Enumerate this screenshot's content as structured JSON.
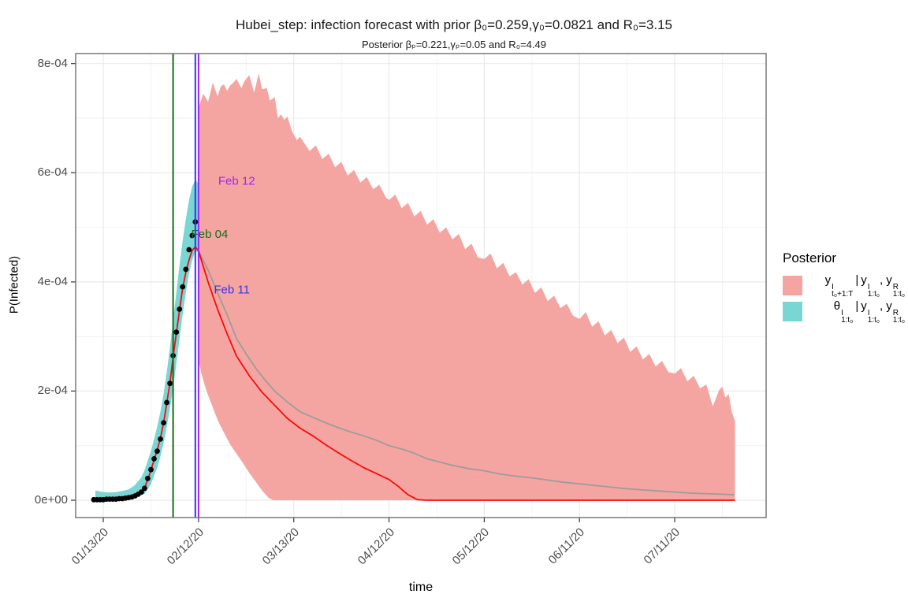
{
  "chart_data": {
    "type": "area",
    "title": "Hubei_step: infection forecast with prior β₀=0.259,γ₀=0.0821 and R₀=3.15",
    "subtitle": "Posterior βₚ=0.221,γₚ=0.05 and R₀=4.49",
    "xlabel": "time",
    "ylabel": "P(Infected)",
    "xlim_days": [
      -8.7,
      208.8
    ],
    "ylim_e4": [
      -0.317,
      8.183
    ],
    "x_ticks": [
      {
        "day": 0,
        "label": "01/13/20"
      },
      {
        "day": 30,
        "label": "02/12/20"
      },
      {
        "day": 60,
        "label": "03/13/20"
      },
      {
        "day": 90,
        "label": "04/12/20"
      },
      {
        "day": 120,
        "label": "05/12/20"
      },
      {
        "day": 150,
        "label": "06/11/20"
      },
      {
        "day": 180,
        "label": "07/11/20"
      }
    ],
    "minor_x_days": [
      15,
      45,
      75,
      105,
      135,
      165,
      195
    ],
    "y_ticks": [
      {
        "v": 0,
        "label": "0e+00"
      },
      {
        "v": 2,
        "label": "2e-04"
      },
      {
        "v": 4,
        "label": "4e-04"
      },
      {
        "v": 6,
        "label": "6e-04"
      },
      {
        "v": 8,
        "label": "8e-04"
      }
    ],
    "minor_y": [
      1,
      3,
      5,
      7
    ],
    "colors": {
      "forecast_fill": "#F5A5A1",
      "posterior_fill": "#79D6D3",
      "median_line": "#FA0A0A",
      "mean_line": "#9C9C9C",
      "observed_dot": "#000000",
      "grid_major": "#E9E9E9",
      "grid_minor": "#F2F2F2",
      "panel_border": "#6E6E6E",
      "tick_mark": "#333333"
    },
    "vlines": [
      {
        "label": "Feb 04",
        "day": 22,
        "color": "#176B17",
        "label_day": 33.5,
        "label_value": 4.88
      },
      {
        "label": "Feb 11",
        "day": 29,
        "color": "#3434F0",
        "label_day": 40.5,
        "label_value": 3.86
      },
      {
        "label": "Feb 12",
        "day": 30,
        "color": "#A225F2",
        "label_day": 42.0,
        "label_value": 5.85
      }
    ],
    "series": {
      "observed": [
        [
          -3,
          0.01
        ],
        [
          -2,
          0.01
        ],
        [
          -1,
          0.01
        ],
        [
          0,
          0.01
        ],
        [
          1,
          0.02
        ],
        [
          2,
          0.02
        ],
        [
          3,
          0.02
        ],
        [
          4,
          0.02
        ],
        [
          5,
          0.03
        ],
        [
          6,
          0.03
        ],
        [
          7,
          0.04
        ],
        [
          8,
          0.05
        ],
        [
          9,
          0.06
        ],
        [
          10,
          0.08
        ],
        [
          11,
          0.11
        ],
        [
          12,
          0.15
        ],
        [
          13,
          0.22
        ],
        [
          14,
          0.4
        ],
        [
          15,
          0.56
        ],
        [
          16,
          0.76
        ],
        [
          17,
          0.9
        ],
        [
          18,
          1.12
        ],
        [
          19,
          1.42
        ],
        [
          20,
          1.79
        ],
        [
          21,
          2.14
        ],
        [
          22,
          2.65
        ],
        [
          23,
          3.08
        ],
        [
          24,
          3.5
        ],
        [
          25,
          3.91
        ],
        [
          26,
          4.23
        ],
        [
          27,
          4.59
        ],
        [
          28,
          4.85
        ],
        [
          29,
          5.1
        ]
      ],
      "posterior_ribbon": [
        [
          -2.5,
          0.02,
          0.18
        ],
        [
          0,
          0.0,
          0.15
        ],
        [
          2,
          0.0,
          0.14
        ],
        [
          4,
          0.0,
          0.15
        ],
        [
          6,
          0.01,
          0.17
        ],
        [
          8,
          0.03,
          0.2
        ],
        [
          10,
          0.05,
          0.28
        ],
        [
          12,
          0.09,
          0.42
        ],
        [
          13,
          0.12,
          0.55
        ],
        [
          14,
          0.2,
          0.72
        ],
        [
          15,
          0.3,
          0.9
        ],
        [
          16,
          0.45,
          1.12
        ],
        [
          17,
          0.6,
          1.35
        ],
        [
          18,
          0.8,
          1.62
        ],
        [
          19,
          1.05,
          1.95
        ],
        [
          20,
          1.35,
          2.35
        ],
        [
          21,
          1.68,
          2.8
        ],
        [
          22,
          2.05,
          3.3
        ],
        [
          23,
          2.5,
          3.8
        ],
        [
          24,
          2.95,
          4.3
        ],
        [
          25,
          3.4,
          4.75
        ],
        [
          26,
          3.8,
          5.15
        ],
        [
          27,
          4.15,
          5.5
        ],
        [
          28,
          4.4,
          5.75
        ],
        [
          29,
          4.55,
          5.87
        ],
        [
          30,
          4.55,
          5.8
        ]
      ],
      "median_line": [
        [
          -2.5,
          0.03
        ],
        [
          0,
          0.03
        ],
        [
          2,
          0.03
        ],
        [
          4,
          0.04
        ],
        [
          6,
          0.04
        ],
        [
          8,
          0.06
        ],
        [
          10,
          0.09
        ],
        [
          12,
          0.16
        ],
        [
          13,
          0.22
        ],
        [
          14,
          0.38
        ],
        [
          15,
          0.55
        ],
        [
          16,
          0.74
        ],
        [
          17,
          0.92
        ],
        [
          18,
          1.14
        ],
        [
          19,
          1.42
        ],
        [
          20,
          1.78
        ],
        [
          21,
          2.15
        ],
        [
          22,
          2.62
        ],
        [
          23,
          3.06
        ],
        [
          24,
          3.48
        ],
        [
          25,
          3.88
        ],
        [
          26,
          4.18
        ],
        [
          27,
          4.4
        ],
        [
          28,
          4.58
        ],
        [
          29,
          4.64
        ],
        [
          30,
          4.57
        ],
        [
          33,
          4.0
        ],
        [
          36,
          3.5
        ],
        [
          39,
          3.05
        ],
        [
          42,
          2.64
        ],
        [
          46,
          2.28
        ],
        [
          50,
          1.98
        ],
        [
          54,
          1.74
        ],
        [
          58,
          1.5
        ],
        [
          62,
          1.32
        ],
        [
          66,
          1.18
        ],
        [
          70,
          1.02
        ],
        [
          74,
          0.87
        ],
        [
          78,
          0.73
        ],
        [
          82,
          0.6
        ],
        [
          86,
          0.49
        ],
        [
          90,
          0.38
        ],
        [
          93,
          0.25
        ],
        [
          96,
          0.1
        ],
        [
          99,
          0.01
        ],
        [
          102,
          0.0
        ],
        [
          199,
          0.0
        ]
      ],
      "mean_line": [
        [
          30,
          4.57
        ],
        [
          33,
          4.22
        ],
        [
          36,
          3.8
        ],
        [
          39,
          3.4
        ],
        [
          42,
          2.96
        ],
        [
          45,
          2.68
        ],
        [
          48,
          2.42
        ],
        [
          51,
          2.2
        ],
        [
          54,
          2.0
        ],
        [
          58,
          1.8
        ],
        [
          62,
          1.62
        ],
        [
          66,
          1.52
        ],
        [
          70,
          1.42
        ],
        [
          74,
          1.33
        ],
        [
          78,
          1.25
        ],
        [
          82,
          1.18
        ],
        [
          86,
          1.1
        ],
        [
          90,
          1.0
        ],
        [
          94,
          0.94
        ],
        [
          98,
          0.86
        ],
        [
          102,
          0.76
        ],
        [
          106,
          0.7
        ],
        [
          110,
          0.64
        ],
        [
          115,
          0.58
        ],
        [
          120,
          0.54
        ],
        [
          125,
          0.48
        ],
        [
          130,
          0.44
        ],
        [
          135,
          0.41
        ],
        [
          140,
          0.37
        ],
        [
          145,
          0.33
        ],
        [
          150,
          0.3
        ],
        [
          155,
          0.27
        ],
        [
          160,
          0.24
        ],
        [
          165,
          0.21
        ],
        [
          170,
          0.19
        ],
        [
          175,
          0.17
        ],
        [
          180,
          0.15
        ],
        [
          185,
          0.13
        ],
        [
          190,
          0.12
        ],
        [
          195,
          0.11
        ],
        [
          199,
          0.1
        ]
      ],
      "forecast_ribbon": {
        "upper": [
          [
            30,
            7.19
          ],
          [
            31.5,
            7.45
          ],
          [
            33,
            7.3
          ],
          [
            34.5,
            7.65
          ],
          [
            36,
            7.4
          ],
          [
            37,
            7.58
          ],
          [
            38,
            7.62
          ],
          [
            39,
            7.5
          ],
          [
            40,
            7.6
          ],
          [
            41,
            7.65
          ],
          [
            42,
            7.72
          ],
          [
            43.5,
            7.55
          ],
          [
            44.5,
            7.68
          ],
          [
            46,
            7.79
          ],
          [
            47.5,
            7.47
          ],
          [
            49,
            7.82
          ],
          [
            50,
            7.53
          ],
          [
            51.5,
            7.55
          ],
          [
            52.5,
            7.32
          ],
          [
            54,
            7.39
          ],
          [
            55,
            7.0
          ],
          [
            56,
            7.07
          ],
          [
            57,
            6.97
          ],
          [
            58,
            7.03
          ],
          [
            59.5,
            6.75
          ],
          [
            61,
            6.6
          ],
          [
            62,
            6.66
          ],
          [
            63,
            6.57
          ],
          [
            65,
            6.4
          ],
          [
            67,
            6.5
          ],
          [
            69,
            6.25
          ],
          [
            71,
            6.35
          ],
          [
            73,
            6.1
          ],
          [
            75,
            6.2
          ],
          [
            77,
            5.95
          ],
          [
            79,
            6.05
          ],
          [
            81,
            5.82
          ],
          [
            83,
            5.92
          ],
          [
            85,
            5.7
          ],
          [
            87,
            5.78
          ],
          [
            89,
            5.55
          ],
          [
            90,
            5.5
          ],
          [
            92,
            5.6
          ],
          [
            94,
            5.35
          ],
          [
            96,
            5.45
          ],
          [
            98,
            5.2
          ],
          [
            100,
            5.3
          ],
          [
            102,
            5.05
          ],
          [
            104,
            5.15
          ],
          [
            106,
            4.9
          ],
          [
            108,
            5.0
          ],
          [
            110,
            4.78
          ],
          [
            112,
            4.88
          ],
          [
            114,
            4.6
          ],
          [
            116,
            4.7
          ],
          [
            118,
            4.45
          ],
          [
            120,
            4.42
          ],
          [
            122,
            4.52
          ],
          [
            124,
            4.25
          ],
          [
            126,
            4.35
          ],
          [
            128,
            4.1
          ],
          [
            130,
            4.18
          ],
          [
            132,
            3.95
          ],
          [
            134,
            4.05
          ],
          [
            136,
            3.8
          ],
          [
            138,
            3.9
          ],
          [
            140,
            3.65
          ],
          [
            142,
            3.75
          ],
          [
            144,
            3.52
          ],
          [
            146,
            3.6
          ],
          [
            148,
            3.38
          ],
          [
            150,
            3.32
          ],
          [
            152,
            3.45
          ],
          [
            154,
            3.18
          ],
          [
            156,
            3.28
          ],
          [
            158,
            3.02
          ],
          [
            160,
            3.12
          ],
          [
            162,
            2.88
          ],
          [
            164,
            2.98
          ],
          [
            166,
            2.72
          ],
          [
            168,
            2.82
          ],
          [
            170,
            2.58
          ],
          [
            172,
            2.68
          ],
          [
            174,
            2.45
          ],
          [
            176,
            2.55
          ],
          [
            178,
            2.35
          ],
          [
            180,
            2.32
          ],
          [
            182,
            2.42
          ],
          [
            184,
            2.18
          ],
          [
            186,
            2.28
          ],
          [
            188,
            2.05
          ],
          [
            190,
            2.12
          ],
          [
            192,
            1.72
          ],
          [
            194,
            2.02
          ],
          [
            195,
            2.08
          ],
          [
            196,
            1.88
          ],
          [
            197,
            1.95
          ],
          [
            198,
            1.62
          ],
          [
            199,
            1.45
          ]
        ],
        "lower": [
          [
            30,
            2.55
          ],
          [
            31,
            2.3
          ],
          [
            32,
            2.1
          ],
          [
            33,
            1.92
          ],
          [
            34,
            1.78
          ],
          [
            35,
            1.62
          ],
          [
            36,
            1.48
          ],
          [
            37,
            1.35
          ],
          [
            38,
            1.24
          ],
          [
            40,
            1.02
          ],
          [
            42,
            0.85
          ],
          [
            44,
            0.68
          ],
          [
            46,
            0.5
          ],
          [
            48,
            0.34
          ],
          [
            50,
            0.18
          ],
          [
            52,
            0.05
          ],
          [
            53.5,
            0.0
          ],
          [
            199,
            0.0
          ]
        ]
      }
    }
  },
  "legend": {
    "title": "Posterior",
    "items": [
      {
        "color": "#F5A5A1",
        "base1": "y",
        "sup1": "I",
        "sub1": "t₀+1:T",
        "sep1": "|",
        "base2": "y",
        "sup2": "I",
        "sub2": "1:t₀",
        "sep2": ",",
        "base3": "y",
        "sup3": "R",
        "sub3": "1:t₀"
      },
      {
        "color": "#79D6D3",
        "base1": "θ",
        "sup1": "I",
        "sub1": "1:t₀",
        "sep1": "|",
        "base2": "y",
        "sup2": "I",
        "sub2": "1:t₀",
        "sep2": ",",
        "base3": "y",
        "sup3": "R",
        "sub3": "1:t₀"
      }
    ]
  }
}
